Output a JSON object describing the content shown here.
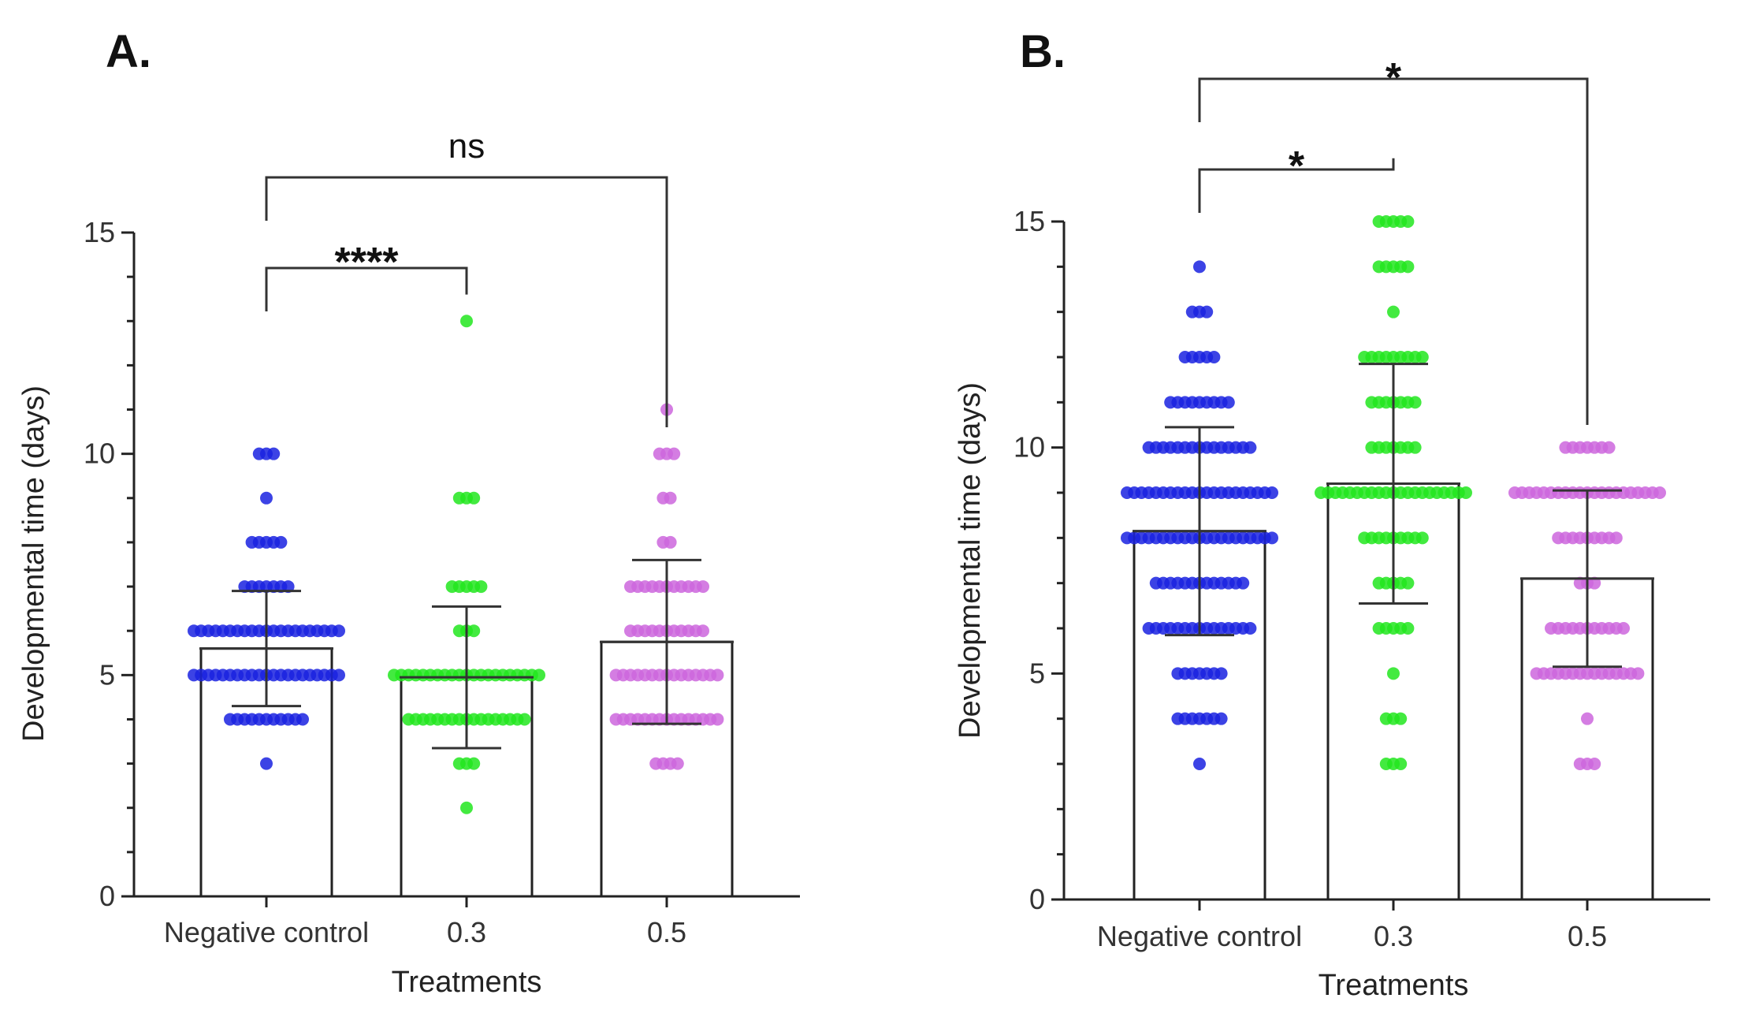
{
  "chart_data": [
    {
      "panel_label": "A.",
      "type": "bar",
      "xlabel": "Treatments",
      "ylabel": "Developmental time (days)",
      "ylim": [
        0,
        15
      ],
      "yticks": [
        "0",
        "5",
        "10",
        "15"
      ],
      "categories": [
        "Negative control",
        "0.3",
        "0.5"
      ],
      "means": [
        5.6,
        4.95,
        5.75
      ],
      "sd": [
        1.3,
        1.6,
        1.85
      ],
      "bar_colors": [
        "#1a22e0",
        "#22e61e",
        "#cc66dd"
      ],
      "points": [
        [
          {
            "y": 3,
            "n": 1
          },
          {
            "y": 4,
            "n": 11
          },
          {
            "y": 5,
            "n": 21
          },
          {
            "y": 6,
            "n": 21
          },
          {
            "y": 7,
            "n": 7
          },
          {
            "y": 8,
            "n": 5
          },
          {
            "y": 9,
            "n": 1
          },
          {
            "y": 10,
            "n": 3
          }
        ],
        [
          {
            "y": 2,
            "n": 1
          },
          {
            "y": 3,
            "n": 3
          },
          {
            "y": 4,
            "n": 17
          },
          {
            "y": 5,
            "n": 21
          },
          {
            "y": 6,
            "n": 3
          },
          {
            "y": 7,
            "n": 5
          },
          {
            "y": 9,
            "n": 3
          },
          {
            "y": 13,
            "n": 1
          }
        ],
        [
          {
            "y": 3,
            "n": 4
          },
          {
            "y": 4,
            "n": 15
          },
          {
            "y": 5,
            "n": 15
          },
          {
            "y": 6,
            "n": 11
          },
          {
            "y": 7,
            "n": 11
          },
          {
            "y": 8,
            "n": 2
          },
          {
            "y": 9,
            "n": 2
          },
          {
            "y": 10,
            "n": 3
          },
          {
            "y": 11,
            "n": 1
          }
        ]
      ],
      "comparisons": [
        {
          "from": 0,
          "to": 1,
          "label": "****"
        },
        {
          "from": 0,
          "to": 2,
          "label": "ns"
        }
      ]
    },
    {
      "panel_label": "B.",
      "type": "bar",
      "xlabel": "Treatments",
      "ylabel": "Developmental time (days)",
      "ylim": [
        0,
        15
      ],
      "yticks": [
        "0",
        "5",
        "10",
        "15"
      ],
      "categories": [
        "Negative control",
        "0.3",
        "0.5"
      ],
      "means": [
        8.15,
        9.2,
        7.1
      ],
      "sd": [
        2.3,
        2.65,
        1.95
      ],
      "bar_colors": [
        "#1a22e0",
        "#22e61e",
        "#cc66dd"
      ],
      "points": [
        [
          {
            "y": 3,
            "n": 1
          },
          {
            "y": 4,
            "n": 7
          },
          {
            "y": 5,
            "n": 7
          },
          {
            "y": 6,
            "n": 15
          },
          {
            "y": 7,
            "n": 13
          },
          {
            "y": 8,
            "n": 21
          },
          {
            "y": 9,
            "n": 21
          },
          {
            "y": 10,
            "n": 15
          },
          {
            "y": 11,
            "n": 9
          },
          {
            "y": 12,
            "n": 5
          },
          {
            "y": 13,
            "n": 3
          },
          {
            "y": 14,
            "n": 1
          }
        ],
        [
          {
            "y": 3,
            "n": 3
          },
          {
            "y": 4,
            "n": 3
          },
          {
            "y": 5,
            "n": 1
          },
          {
            "y": 6,
            "n": 5
          },
          {
            "y": 7,
            "n": 5
          },
          {
            "y": 8,
            "n": 9
          },
          {
            "y": 9,
            "n": 21
          },
          {
            "y": 10,
            "n": 7
          },
          {
            "y": 11,
            "n": 7
          },
          {
            "y": 12,
            "n": 9
          },
          {
            "y": 13,
            "n": 1
          },
          {
            "y": 14,
            "n": 5
          },
          {
            "y": 15,
            "n": 5
          }
        ],
        [
          {
            "y": 3,
            "n": 3
          },
          {
            "y": 4,
            "n": 1
          },
          {
            "y": 5,
            "n": 15
          },
          {
            "y": 6,
            "n": 11
          },
          {
            "y": 7,
            "n": 3
          },
          {
            "y": 8,
            "n": 9
          },
          {
            "y": 9,
            "n": 21
          },
          {
            "y": 10,
            "n": 7
          }
        ]
      ],
      "comparisons": [
        {
          "from": 0,
          "to": 1,
          "label": "*"
        },
        {
          "from": 0,
          "to": 2,
          "label": "*"
        }
      ]
    }
  ]
}
